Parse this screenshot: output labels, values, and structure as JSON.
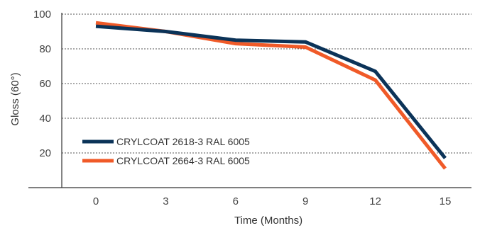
{
  "chart_data": {
    "type": "line",
    "xlabel": "Time (Months)",
    "ylabel": "Gloss (60°)",
    "x": [
      0,
      3,
      6,
      9,
      12,
      15
    ],
    "x_tick_labels": [
      "0",
      "3",
      "6",
      "9",
      "12",
      "15"
    ],
    "y_tick_labels": [
      "20",
      "40",
      "60",
      "80",
      "100"
    ],
    "ylim": [
      0,
      100
    ],
    "grid": "horizontal-dotted",
    "legend_position": "bottom-left",
    "series": [
      {
        "name": "CRYLCOAT 2618-3 RAL 6005",
        "color": "#0b3358",
        "values": [
          93,
          90,
          85,
          84,
          67,
          17
        ]
      },
      {
        "name": "CRYLCOAT 2664-3 RAL 6005",
        "color": "#f05a28",
        "values": [
          95,
          90,
          83,
          81,
          62,
          11
        ]
      }
    ]
  }
}
